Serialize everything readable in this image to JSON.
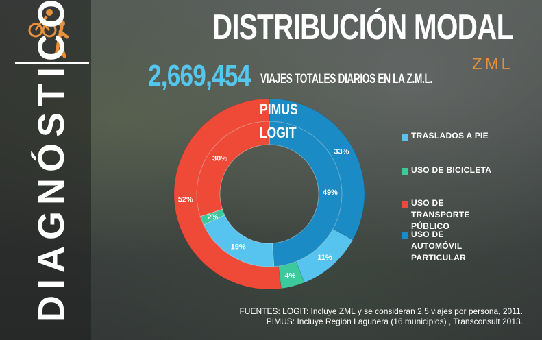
{
  "header": {
    "title": "DISTRIBUCIÓN MODAL",
    "subtitle": "ZML",
    "total_number": "2,669,454",
    "total_label": "VIAJES TOTALES DIARIOS EN LA Z.M.L."
  },
  "sidebar": {
    "label": "DIAGNÓSTICO",
    "icon": "cyclist-pedestrian-icon"
  },
  "colors": {
    "pie": "#56c4ee",
    "bicicleta": "#3cc99b",
    "transporte_publico": "#ee4a37",
    "automovil": "#1a8bc4",
    "accent": "#e8913c"
  },
  "legend": {
    "items": [
      {
        "label": "TRASLADOS A PIE",
        "color": "#56c4ee"
      },
      {
        "label": "USO DE BICICLETA",
        "color": "#3cc99b"
      },
      {
        "label": "USO DE TRANSPORTE PÚBLICO",
        "color": "#ee4a37"
      },
      {
        "label": "USO DE AUTOMÓVIL PARTICULAR",
        "color": "#1a8bc4"
      }
    ]
  },
  "chart_data": {
    "type": "donut",
    "title": "DISTRIBUCIÓN MODAL",
    "categories": [
      "TRASLADOS A PIE",
      "USO DE BICICLETA",
      "USO DE TRANSPORTE PÚBLICO",
      "USO DE AUTOMÓVIL PARTICULAR"
    ],
    "series": [
      {
        "name": "PIMUS",
        "ring": "outer",
        "values": [
          11,
          4,
          52,
          33
        ],
        "labels": [
          "11%",
          "4%",
          "52%",
          "33%"
        ]
      },
      {
        "name": "LOGIT",
        "ring": "inner",
        "values": [
          19,
          2,
          30,
          49
        ],
        "labels": [
          "19%",
          "2%",
          "30%",
          "49%"
        ]
      }
    ],
    "legend_position": "right"
  },
  "sources": {
    "line1": "FUENTES: LOGIT: Incluye ZML y se consideran 2.5 viajes por persona, 2011.",
    "line2": "PIMUS: Incluye Región Lagunera (16 municipios) , Transconsult 2013."
  }
}
